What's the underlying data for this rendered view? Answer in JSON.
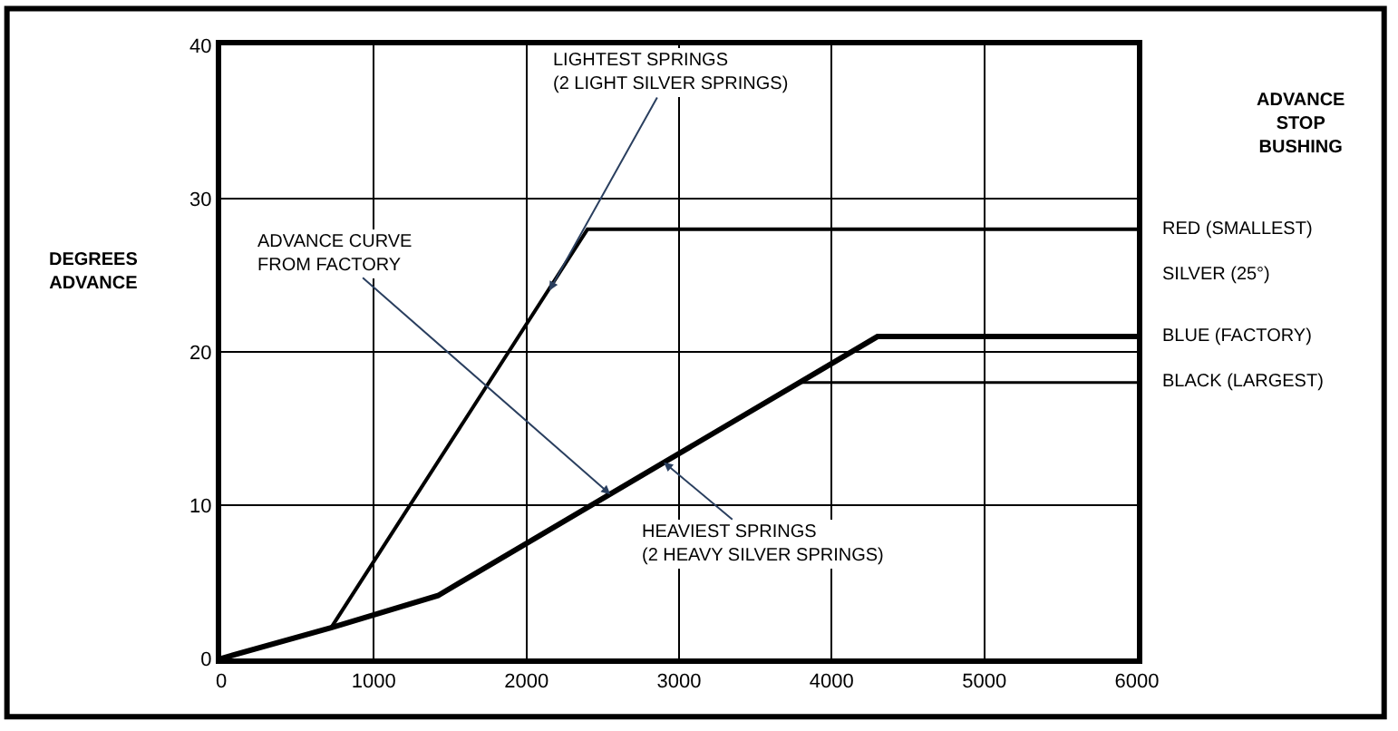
{
  "chart_data": {
    "type": "line",
    "ylabel": "DEGREES\nADVANCE",
    "legend_title": "ADVANCE\nSTOP\nBUSHING",
    "series": [
      {
        "color": "#000000",
        "x": [
          0,
          720,
          2400,
          6000
        ],
        "values": [
          0,
          2,
          28,
          28
        ]
      },
      {
        "color": "#000000",
        "x": [
          0,
          720,
          1420,
          4300,
          6000
        ],
        "values": [
          0,
          2,
          4.1,
          21,
          21
        ]
      },
      {
        "color": "#000000",
        "x": [
          3800,
          6000
        ],
        "values": [
          18,
          18
        ]
      }
    ],
    "xlim": [
      0,
      6000
    ],
    "xticks": [
      0,
      1000,
      2000,
      3000,
      4000,
      5000,
      6000
    ],
    "ylim": [
      0,
      40
    ],
    "yticks": [
      0,
      10,
      20,
      30,
      40
    ],
    "grid": true,
    "legend": false,
    "marker": "none",
    "line_style": "solid",
    "annotations": [
      {
        "text": "LIGHTEST SPRINGS\n(2 LIGHT SILVER SPRINGS)",
        "x": 2150,
        "y": 24
      },
      {
        "text": "ADVANCE CURVE\nFROM FACTORY",
        "x": 2550,
        "y": 10.7
      },
      {
        "text": "HEAVIEST SPRINGS\n(2 HEAVY SILVER SPRINGS)",
        "x": 2900,
        "y": 12.8
      },
      {
        "text": "RED (SMALLEST)",
        "x": 6000,
        "y": 28
      },
      "SILVER (25°)",
      {
        "text": "BLUE (FACTORY)",
        "x": 6000,
        "y": 21
      },
      {
        "text": "BLACK (LARGEST)",
        "x": 6000,
        "y": 18
      }
    ]
  }
}
